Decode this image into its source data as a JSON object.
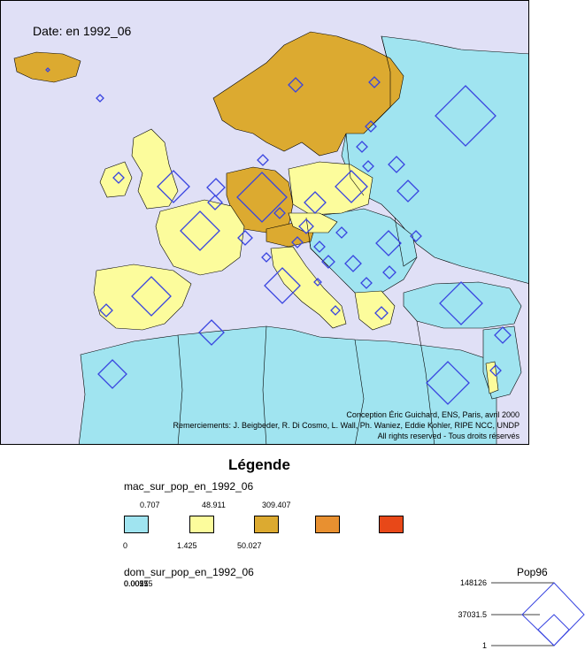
{
  "map": {
    "date_label": "Date: en 1992_06",
    "credits": [
      "Conception Éric Guichard, ENS, Paris, avril 2000",
      "Remerciements: J. Beigbeder, R. Di Cosmo, L. Wall, Ph. Waniez, Eddie Kohler, RIPE NCC, UNDP",
      "All rights reserved - Tous droits réservés"
    ],
    "colors": {
      "sea": "#e0e0f6",
      "class_1": "#a0e4f0",
      "class_2": "#fcfc9c",
      "class_3": "#dcaa30",
      "class_4": "#e89030",
      "class_5": "#e84818",
      "diamond": "#3844e0"
    }
  },
  "legend": {
    "title": "Légende",
    "mac": {
      "title": "mac_sur_pop_en_1992_06",
      "upper_ticks": [
        "0.707",
        "48.911",
        "309.407"
      ],
      "lower_ticks": [
        "0",
        "1.425",
        "50.027"
      ]
    },
    "dom": {
      "title": "dom_sur_pop_en_1992_06",
      "overlapping_values": [
        "0.00175",
        "0.0025",
        "0.0051"
      ]
    },
    "pop": {
      "title": "Pop96",
      "values": [
        "148126",
        "37031.5",
        "1"
      ]
    }
  }
}
